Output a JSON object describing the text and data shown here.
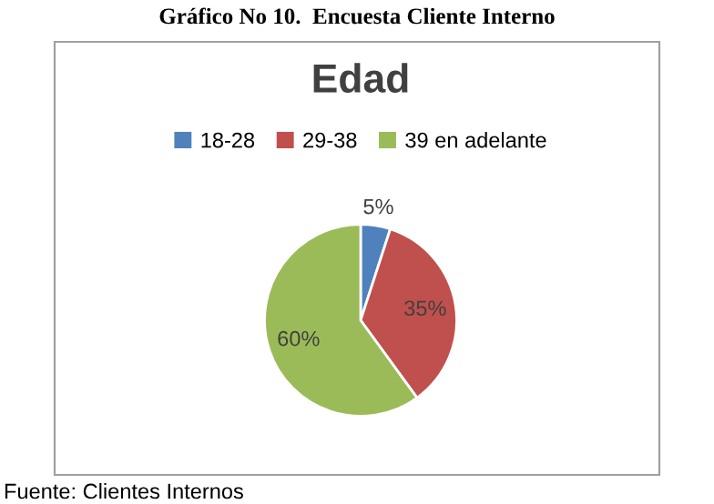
{
  "chart_data": {
    "type": "pie",
    "title": "Edad",
    "subtitle": "Gráfico No 10.  Encuesta Cliente Interno",
    "categories": [
      "18-28",
      "29-38",
      "39 en adelante"
    ],
    "values": [
      5,
      35,
      60
    ],
    "colors": [
      "#4f81bd",
      "#c0504d",
      "#9bbb59"
    ],
    "value_labels": [
      "5%",
      "35%",
      "60%"
    ],
    "legend": "top",
    "annotations": [
      "Fuente: Clientes Internos"
    ]
  }
}
